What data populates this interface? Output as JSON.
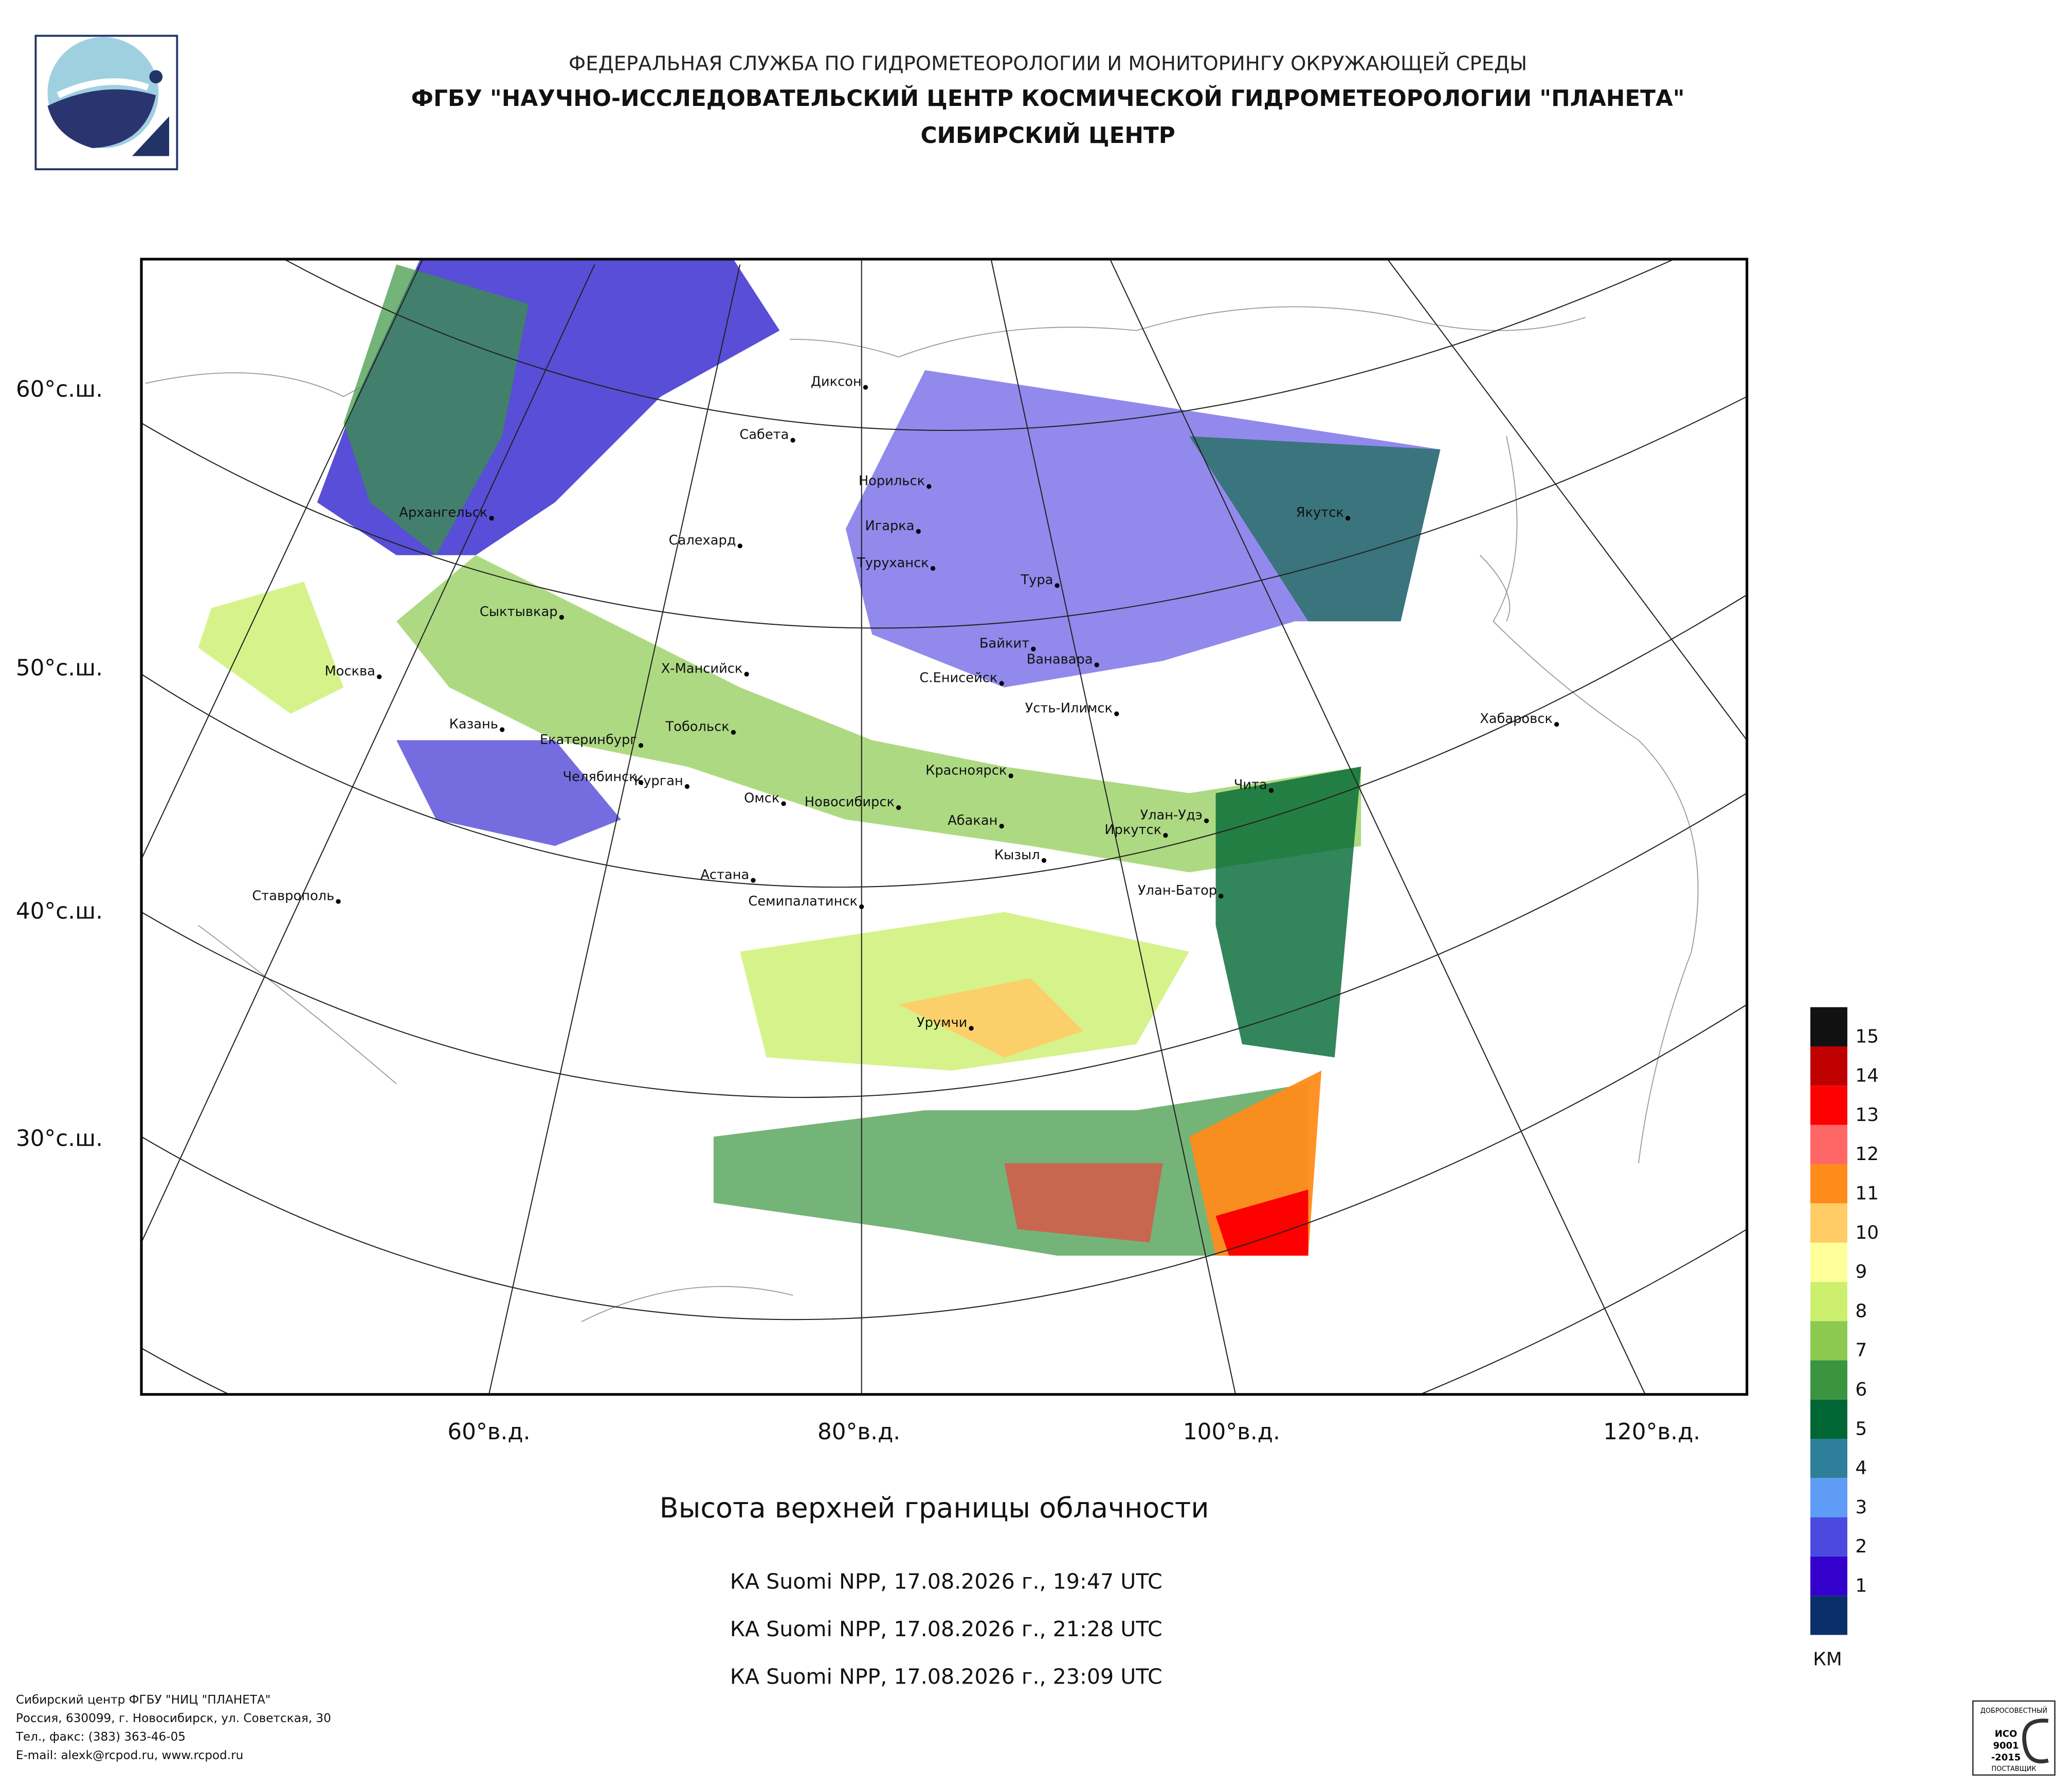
{
  "header": {
    "line1": "ФЕДЕРАЛЬНАЯ СЛУЖБА ПО ГИДРОМЕТЕОРОЛОГИИ И МОНИТОРИНГУ ОКРУЖАЮЩЕЙ СРЕДЫ",
    "line2": "ФГБУ \"НАУЧНО-ИССЛЕДОВАТЕЛЬСКИЙ ЦЕНТР КОСМИЧЕСКОЙ ГИДРОМЕТЕОРОЛОГИИ \"ПЛАНЕТА\"",
    "line3": "СИБИРСКИЙ ЦЕНТР"
  },
  "map": {
    "lat_labels": [
      "60°с.ш.",
      "50°с.ш.",
      "40°с.ш.",
      "30°с.ш."
    ],
    "lon_labels": [
      "60°в.д.",
      "80°в.д.",
      "100°в.д.",
      "120°в.д."
    ],
    "cities": [
      "Диксон",
      "Сабета",
      "Норильск",
      "Игарка",
      "Архангельск",
      "Салехард",
      "Туруханск",
      "Тура",
      "Якутск",
      "Сыктывкар",
      "Байкит",
      "Ванавара",
      "Москва",
      "Х-Мансийск",
      "С.Енисейск",
      "Усть-Илимск",
      "Хабаровск",
      "Казань",
      "Тобольск",
      "Екатеринбург",
      "Челябинск",
      "Красноярск",
      "Курган",
      "Чита",
      "Омск",
      "Новосибирск",
      "Абакан",
      "Улан-Удэ",
      "Иркутск",
      "Кызыл",
      "Астана",
      "Ставрополь",
      "Улан-Батор",
      "Семипалатинск",
      "Урумчи"
    ]
  },
  "legend": {
    "levels": [
      1,
      2,
      3,
      4,
      5,
      6,
      7,
      8,
      9,
      10,
      11,
      12,
      13,
      14,
      15
    ],
    "unit": "КМ",
    "colors": [
      "#0b2f6b",
      "#3300cc",
      "#4a4ae0",
      "#5f9cf5",
      "#2e7f99",
      "#006633",
      "#3b9440",
      "#8cc94f",
      "#ccf06e",
      "#ffff99",
      "#ffcc66",
      "#ff8c1a",
      "#ff6666",
      "#ff0000",
      "#c00000",
      "#111111"
    ]
  },
  "title": "Высота верхней границы облачности",
  "passes": [
    "КА Suomi NPP, 17.08.2026 г., 19:47 UTC",
    "КА Suomi NPP, 17.08.2026 г., 21:28 UTC",
    "КА Suomi NPP, 17.08.2026 г., 23:09 UTC"
  ],
  "footer": [
    "Сибирский центр ФГБУ \"НИЦ \"ПЛАНЕТА\"",
    "Россия, 630099, г. Новосибирск, ул. Советская, 30",
    "Тел., факс: (383) 363-46-05",
    "E-mail: alexk@rcpod.ru, www.rcpod.ru"
  ],
  "cert": [
    "ДОБРОСОВЕСТНЫЙ",
    "ИСО",
    "9001",
    "-2015",
    "ПОСТАВЩИК"
  ]
}
